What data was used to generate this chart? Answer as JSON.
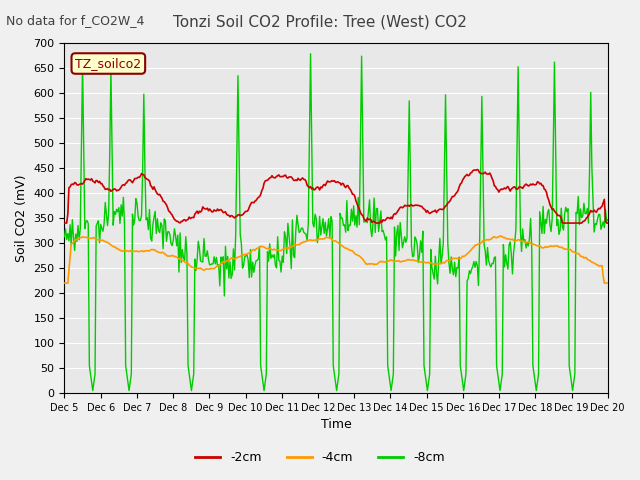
{
  "title": "Tonzi Soil CO2 Profile: Tree (West) CO2",
  "suptitle_left": "No data for f_CO2W_4",
  "ylabel": "Soil CO2 (mV)",
  "xlabel": "Time",
  "legend_label": "TZ_soilco2",
  "series_labels": [
    "-2cm",
    "-4cm",
    "-8cm"
  ],
  "series_colors": [
    "#cc0000",
    "#ff9900",
    "#00cc00"
  ],
  "background_color": "#e8e8e8",
  "ylim": [
    0,
    700
  ],
  "yticks": [
    0,
    50,
    100,
    150,
    200,
    250,
    300,
    350,
    400,
    450,
    500,
    550,
    600,
    650,
    700
  ],
  "xtick_labels": [
    "Dec 5",
    "Dec 6",
    "Dec 7",
    "Dec 8",
    "Dec 9",
    "Dec 10",
    "Dec 11",
    "Dec 12",
    "Dec 13",
    "Dec 14",
    "Dec 15",
    "Dec 16",
    "Dec 17",
    "Dec 18",
    "Dec 19",
    "Dec 20"
  ],
  "n_points": 480
}
